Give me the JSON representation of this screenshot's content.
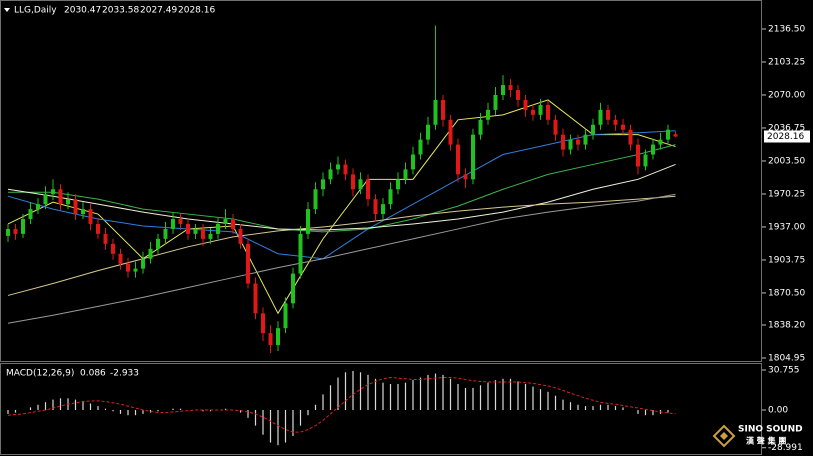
{
  "chart_data": {
    "type": "candlestick",
    "symbol": "LLG,Daily",
    "up_color": "#1fc21f",
    "down_color": "#e01818",
    "ylim": [
      1802.93,
      2165.72
    ],
    "yticks": [
      {
        "value": 2136.5,
        "label": "2136.50"
      },
      {
        "value": 2103.25,
        "label": "2103.25"
      },
      {
        "value": 2070,
        "label": "2070.00"
      },
      {
        "value": 2036.75,
        "label": "2036.75"
      },
      {
        "value": 2003.5,
        "label": "2003.50"
      },
      {
        "value": 1970.25,
        "label": "1970.25"
      },
      {
        "value": 1937,
        "label": "1937.00"
      },
      {
        "value": 1903.75,
        "label": "1903.75"
      },
      {
        "value": 1870.5,
        "label": "1870.50"
      },
      {
        "value": 1838.2,
        "label": "1838.20"
      },
      {
        "value": 1804.95,
        "label": "1804.95"
      }
    ],
    "candles": [
      [
        1928,
        1940,
        1922,
        1935
      ],
      [
        1935,
        1940,
        1924,
        1930
      ],
      [
        1930,
        1950,
        1926,
        1945
      ],
      [
        1945,
        1962,
        1940,
        1955
      ],
      [
        1955,
        1966,
        1950,
        1960
      ],
      [
        1960,
        1978,
        1955,
        1970
      ],
      [
        1970,
        1985,
        1964,
        1975
      ],
      [
        1975,
        1980,
        1954,
        1960
      ],
      [
        1960,
        1972,
        1955,
        1965
      ],
      [
        1965,
        1970,
        1944,
        1950
      ],
      [
        1950,
        1962,
        1945,
        1955
      ],
      [
        1955,
        1960,
        1934,
        1940
      ],
      [
        1940,
        1946,
        1925,
        1930
      ],
      [
        1930,
        1936,
        1914,
        1920
      ],
      [
        1920,
        1925,
        1904,
        1910
      ],
      [
        1910,
        1915,
        1894,
        1900
      ],
      [
        1900,
        1906,
        1886,
        1892
      ],
      [
        1892,
        1902,
        1886,
        1895
      ],
      [
        1895,
        1912,
        1890,
        1905
      ],
      [
        1905,
        1922,
        1900,
        1915
      ],
      [
        1915,
        1930,
        1910,
        1925
      ],
      [
        1925,
        1942,
        1920,
        1935
      ],
      [
        1935,
        1952,
        1930,
        1945
      ],
      [
        1945,
        1950,
        1934,
        1940
      ],
      [
        1940,
        1945,
        1924,
        1930
      ],
      [
        1930,
        1940,
        1925,
        1935
      ],
      [
        1935,
        1940,
        1918,
        1925
      ],
      [
        1925,
        1936,
        1920,
        1930
      ],
      [
        1930,
        1946,
        1925,
        1940
      ],
      [
        1940,
        1955,
        1935,
        1945
      ],
      [
        1945,
        1950,
        1930,
        1935
      ],
      [
        1935,
        1940,
        1915,
        1920
      ],
      [
        1920,
        1925,
        1875,
        1880
      ],
      [
        1880,
        1886,
        1844,
        1850
      ],
      [
        1850,
        1856,
        1822,
        1830
      ],
      [
        1830,
        1838,
        1810,
        1818
      ],
      [
        1818,
        1842,
        1812,
        1835
      ],
      [
        1835,
        1866,
        1830,
        1860
      ],
      [
        1860,
        1896,
        1855,
        1890
      ],
      [
        1890,
        1938,
        1885,
        1930
      ],
      [
        1930,
        1962,
        1925,
        1955
      ],
      [
        1955,
        1982,
        1950,
        1975
      ],
      [
        1975,
        1992,
        1968,
        1985
      ],
      [
        1985,
        2002,
        1980,
        1995
      ],
      [
        1995,
        2008,
        1990,
        2000
      ],
      [
        2000,
        2005,
        1984,
        1990
      ],
      [
        1990,
        1996,
        1968,
        1975
      ],
      [
        1975,
        1992,
        1970,
        1985
      ],
      [
        1985,
        1990,
        1958,
        1965
      ],
      [
        1965,
        1970,
        1942,
        1950
      ],
      [
        1950,
        1966,
        1945,
        1960
      ],
      [
        1960,
        1982,
        1955,
        1975
      ],
      [
        1975,
        1992,
        1970,
        1985
      ],
      [
        1985,
        2002,
        1980,
        1995
      ],
      [
        1995,
        2018,
        1990,
        2010
      ],
      [
        2010,
        2032,
        2005,
        2025
      ],
      [
        2025,
        2048,
        2020,
        2040
      ],
      [
        2040,
        2140,
        2035,
        2065
      ],
      [
        2065,
        2070,
        2038,
        2045
      ],
      [
        2045,
        2050,
        2014,
        2020
      ],
      [
        2020,
        2026,
        1982,
        1990
      ],
      [
        1990,
        1996,
        1976,
        1985
      ],
      [
        1985,
        2036,
        1980,
        2030
      ],
      [
        2030,
        2052,
        2025,
        2045
      ],
      [
        2045,
        2062,
        2040,
        2055
      ],
      [
        2055,
        2078,
        2050,
        2070
      ],
      [
        2070,
        2090,
        2065,
        2080
      ],
      [
        2080,
        2086,
        2068,
        2075
      ],
      [
        2075,
        2080,
        2058,
        2065
      ],
      [
        2065,
        2070,
        2048,
        2055
      ],
      [
        2055,
        2060,
        2044,
        2050
      ],
      [
        2050,
        2066,
        2045,
        2060
      ],
      [
        2060,
        2064,
        2040,
        2045
      ],
      [
        2045,
        2050,
        2024,
        2030
      ],
      [
        2030,
        2036,
        2008,
        2015
      ],
      [
        2015,
        2030,
        2010,
        2025
      ],
      [
        2025,
        2030,
        2014,
        2020
      ],
      [
        2020,
        2036,
        2015,
        2030
      ],
      [
        2030,
        2046,
        2025,
        2040
      ],
      [
        2040,
        2062,
        2035,
        2055
      ],
      [
        2055,
        2060,
        2040,
        2045
      ],
      [
        2045,
        2050,
        2034,
        2040
      ],
      [
        2040,
        2046,
        2030,
        2035
      ],
      [
        2035,
        2040,
        2014,
        2020
      ],
      [
        2020,
        2026,
        1990,
        1998
      ],
      [
        1998,
        2015,
        1994,
        2010
      ],
      [
        2010,
        2026,
        2005,
        2020
      ],
      [
        2020,
        2032,
        2015,
        2025
      ],
      [
        2025,
        2040,
        2020,
        2035
      ],
      [
        2030.47,
        2033.58,
        2027.49,
        2028.16
      ]
    ],
    "ma_x": [
      0,
      6,
      12,
      18,
      24,
      30,
      36,
      42,
      48,
      54,
      60,
      66,
      72,
      78,
      84,
      89
    ],
    "moving_averages": [
      {
        "color": "#e8e85a",
        "values": [
          1940,
          1962,
          1950,
          1905,
          1935,
          1938,
          1850,
          1925,
          1985,
          1985,
          2045,
          2050,
          2065,
          2030,
          2030,
          2018
        ]
      },
      {
        "color": "#2f7fe0",
        "values": [
          1968,
          1955,
          1945,
          1938,
          1935,
          1932,
          1910,
          1905,
          1935,
          1960,
          1985,
          2010,
          2020,
          2030,
          2032,
          2034
        ]
      },
      {
        "color": "#3cb44b",
        "values": [
          1972,
          1972,
          1965,
          1955,
          1950,
          1945,
          1935,
          1932,
          1935,
          1945,
          1958,
          1975,
          1990,
          2000,
          2010,
          2020
        ]
      },
      {
        "color": "#f0f0d8",
        "values": [
          1975,
          1968,
          1960,
          1952,
          1945,
          1940,
          1935,
          1934,
          1936,
          1940,
          1945,
          1952,
          1962,
          1975,
          1985,
          2000
        ]
      },
      {
        "color": "#d8c890",
        "values": [
          1868,
          1880,
          1893,
          1905,
          1917,
          1927,
          1933,
          1937,
          1942,
          1948,
          1953,
          1957,
          1960,
          1962,
          1965,
          1968
        ]
      },
      {
        "color": "#9a9a9a",
        "values": [
          1840,
          1848,
          1857,
          1866,
          1876,
          1886,
          1896,
          1905,
          1915,
          1925,
          1935,
          1945,
          1952,
          1958,
          1963,
          1970
        ]
      }
    ],
    "macd": {
      "name": "MACD(12,26,9)",
      "color": "#d8d8d8",
      "signal_color": "#e02020",
      "ylim": [
        -32.29,
        36.14
      ],
      "yticks": [
        30.755,
        {
          "value": 0,
          "label": "0.00"
        },
        -28.991
      ],
      "values": [
        -3,
        -2,
        0,
        2,
        4,
        6,
        8,
        9,
        9,
        8,
        7,
        5,
        3,
        1,
        -1,
        -3,
        -4,
        -4,
        -3,
        -2,
        -1,
        0,
        1,
        1,
        0,
        0,
        -1,
        -1,
        0,
        1,
        0,
        -2,
        -6,
        -12,
        -19,
        -25,
        -27,
        -25,
        -20,
        -12,
        -4,
        4,
        12,
        19,
        25,
        29,
        30,
        29,
        27,
        24,
        21,
        20,
        20,
        21,
        23,
        25,
        27,
        28,
        27,
        24,
        20,
        17,
        17,
        19,
        21,
        23,
        24,
        24,
        22,
        20,
        18,
        16,
        14,
        11,
        8,
        6,
        4,
        3,
        3,
        4,
        4,
        3,
        2,
        0,
        -3,
        -4,
        -4,
        -3,
        -2,
        0.086
      ],
      "signal": [
        -4,
        -3.5,
        -3,
        -2,
        -1,
        0,
        1.5,
        3,
        4.5,
        5.5,
        6.5,
        7,
        7,
        6.5,
        5.5,
        4.5,
        3,
        1.5,
        0,
        -1,
        -2,
        -2,
        -1.5,
        -1,
        -0.5,
        0,
        0,
        0,
        0,
        0,
        0,
        -0.5,
        -1.5,
        -3,
        -5.5,
        -8.5,
        -12,
        -15,
        -17,
        -17,
        -15,
        -12,
        -8,
        -3,
        2,
        7,
        12,
        16,
        19.5,
        22,
        24,
        25,
        24.5,
        24,
        23.5,
        23.5,
        24,
        24.5,
        25,
        25,
        24.5,
        23.5,
        22.5,
        22,
        21.5,
        21.5,
        21.5,
        21.5,
        21.5,
        21,
        20.5,
        19.5,
        18.5,
        17,
        15,
        13,
        11,
        9,
        7.5,
        6,
        5,
        4.5,
        3.5,
        2.5,
        1.5,
        0.5,
        -0.5,
        -1.5,
        -2.3,
        -2.933
      ]
    },
    "watermark": {
      "brand": "SINO SOUND",
      "chinese": "漢 聲 集 團"
    }
  }
}
